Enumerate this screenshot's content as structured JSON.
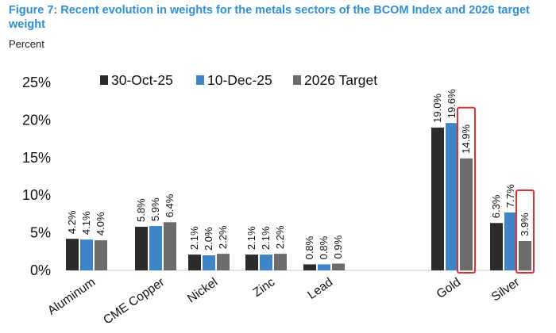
{
  "header": {
    "title": "Figure 7: Recent evolution in weights for the metals sectors of the BCOM Index and 2026 target weight",
    "unit": "Percent"
  },
  "chart_data": {
    "type": "bar",
    "title": "Figure 7: Recent evolution in weights for the metals sectors of the BCOM Index and 2026 target weight",
    "ylabel": "Percent",
    "xlabel": "",
    "ylim": [
      0,
      25
    ],
    "yticks": [
      "0%",
      "5%",
      "10%",
      "15%",
      "20%",
      "25%"
    ],
    "grid": false,
    "legend_position": "top",
    "categories": [
      "Aluminum",
      "CME Copper",
      "Nickel",
      "Zinc",
      "Lead",
      "Gold",
      "Silver"
    ],
    "gap_after_index": 4,
    "series": [
      {
        "name": "30-Oct-25",
        "color": "#2b2b2b",
        "values": [
          4.2,
          5.8,
          2.1,
          2.1,
          0.8,
          19.0,
          6.3
        ],
        "labels": [
          "4.2%",
          "5.8%",
          "2.1%",
          "2.1%",
          "0.8%",
          "19.0%",
          "6.3%"
        ]
      },
      {
        "name": "10-Dec-25",
        "color": "#3d85c6",
        "values": [
          4.1,
          5.9,
          2.0,
          2.1,
          0.8,
          19.6,
          7.7
        ],
        "labels": [
          "4.1%",
          "5.9%",
          "2.0%",
          "2.1%",
          "0.8%",
          "19.6%",
          "7.7%"
        ]
      },
      {
        "name": "2026 Target",
        "color": "#6b6b6b",
        "values": [
          4.0,
          6.4,
          2.2,
          2.2,
          0.9,
          14.9,
          3.9
        ],
        "labels": [
          "4.0%",
          "6.4%",
          "2.2%",
          "2.2%",
          "0.9%",
          "14.9%",
          "3.9%"
        ]
      }
    ],
    "highlight": {
      "series_index": 2,
      "category_indices": [
        5,
        6
      ],
      "color": "#e03131"
    }
  }
}
